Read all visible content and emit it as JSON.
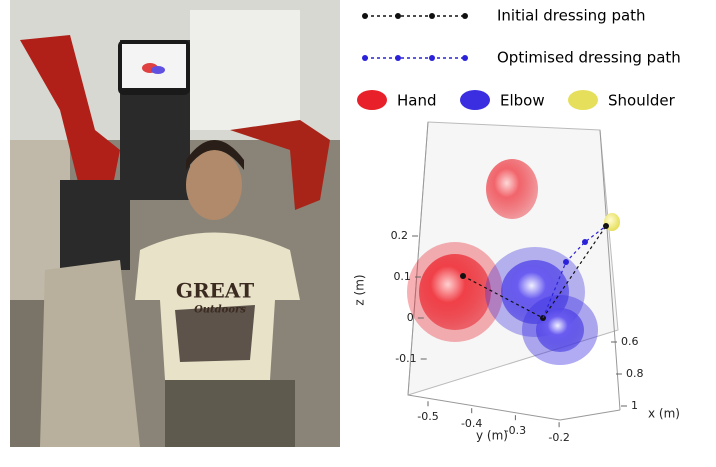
{
  "photo": {
    "shirt_text": [
      "GREAT",
      "Outdoors"
    ]
  },
  "legend": {
    "paths": [
      {
        "label": "Initial dressing path",
        "color": "#111111"
      },
      {
        "label": "Optimised dressing path",
        "color": "#2a22d8"
      }
    ],
    "ellipsoids": [
      {
        "label": "Hand",
        "color": "#e8202a"
      },
      {
        "label": "Elbow",
        "color": "#3a2ee0"
      },
      {
        "label": "Shoulder",
        "color": "#e6df5c"
      }
    ]
  },
  "plot": {
    "z_label": "z (m)",
    "y_label": "y (m)",
    "x_label": "x (m)",
    "z_ticks": [
      0.2,
      0.1,
      0,
      -0.1
    ],
    "y_ticks": [
      -0.5,
      -0.4,
      -0.3,
      -0.2
    ],
    "x_ticks": [
      0.6,
      0.8,
      1
    ]
  }
}
